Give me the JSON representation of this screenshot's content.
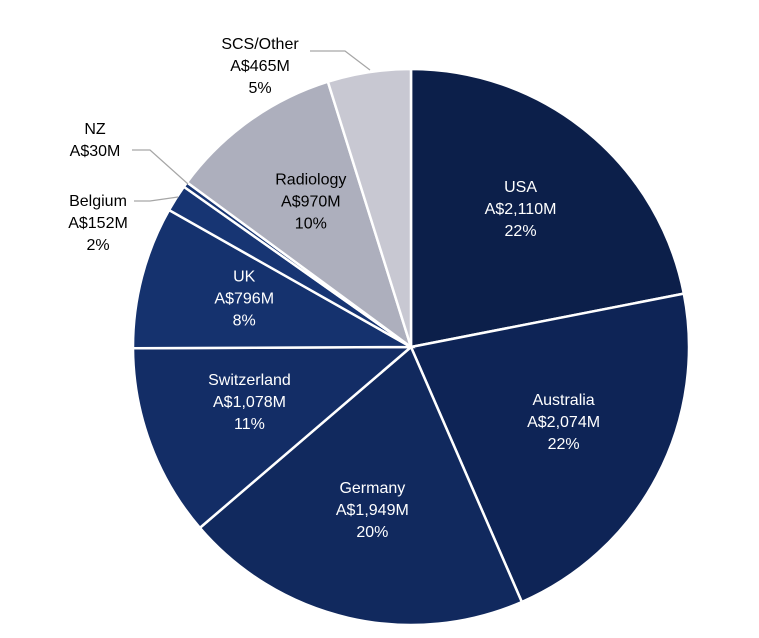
{
  "chart_data": {
    "type": "pie",
    "title": "",
    "unit": "A$M",
    "start": "top, clockwise",
    "slices": [
      {
        "name": "USA",
        "value": 2110,
        "value_label": "A$2,110M",
        "pct_label": "22%",
        "color": "#0c1f4a"
      },
      {
        "name": "Australia",
        "value": 2074,
        "value_label": "A$2,074M",
        "pct_label": "22%",
        "color": "#0e2456"
      },
      {
        "name": "Germany",
        "value": 1949,
        "value_label": "A$1,949M",
        "pct_label": "20%",
        "color": "#11295e"
      },
      {
        "name": "Switzerland",
        "value": 1078,
        "value_label": "A$1,078M",
        "pct_label": "11%",
        "color": "#132d66"
      },
      {
        "name": "UK",
        "value": 796,
        "value_label": "A$796M",
        "pct_label": "8%",
        "color": "#15326e"
      },
      {
        "name": "Belgium",
        "value": 152,
        "value_label": "A$152M",
        "pct_label": "2%",
        "color": "#173573"
      },
      {
        "name": "NZ",
        "value": 30,
        "value_label": "A$30M",
        "pct_label": "",
        "color": "#173573"
      },
      {
        "name": "Radiology",
        "value": 970,
        "value_label": "A$970M",
        "pct_label": "10%",
        "color": "#adafbd"
      },
      {
        "name": "SCS/Other",
        "value": 465,
        "value_label": "A$465M",
        "pct_label": "5%",
        "color": "#c8c8d2"
      }
    ]
  }
}
